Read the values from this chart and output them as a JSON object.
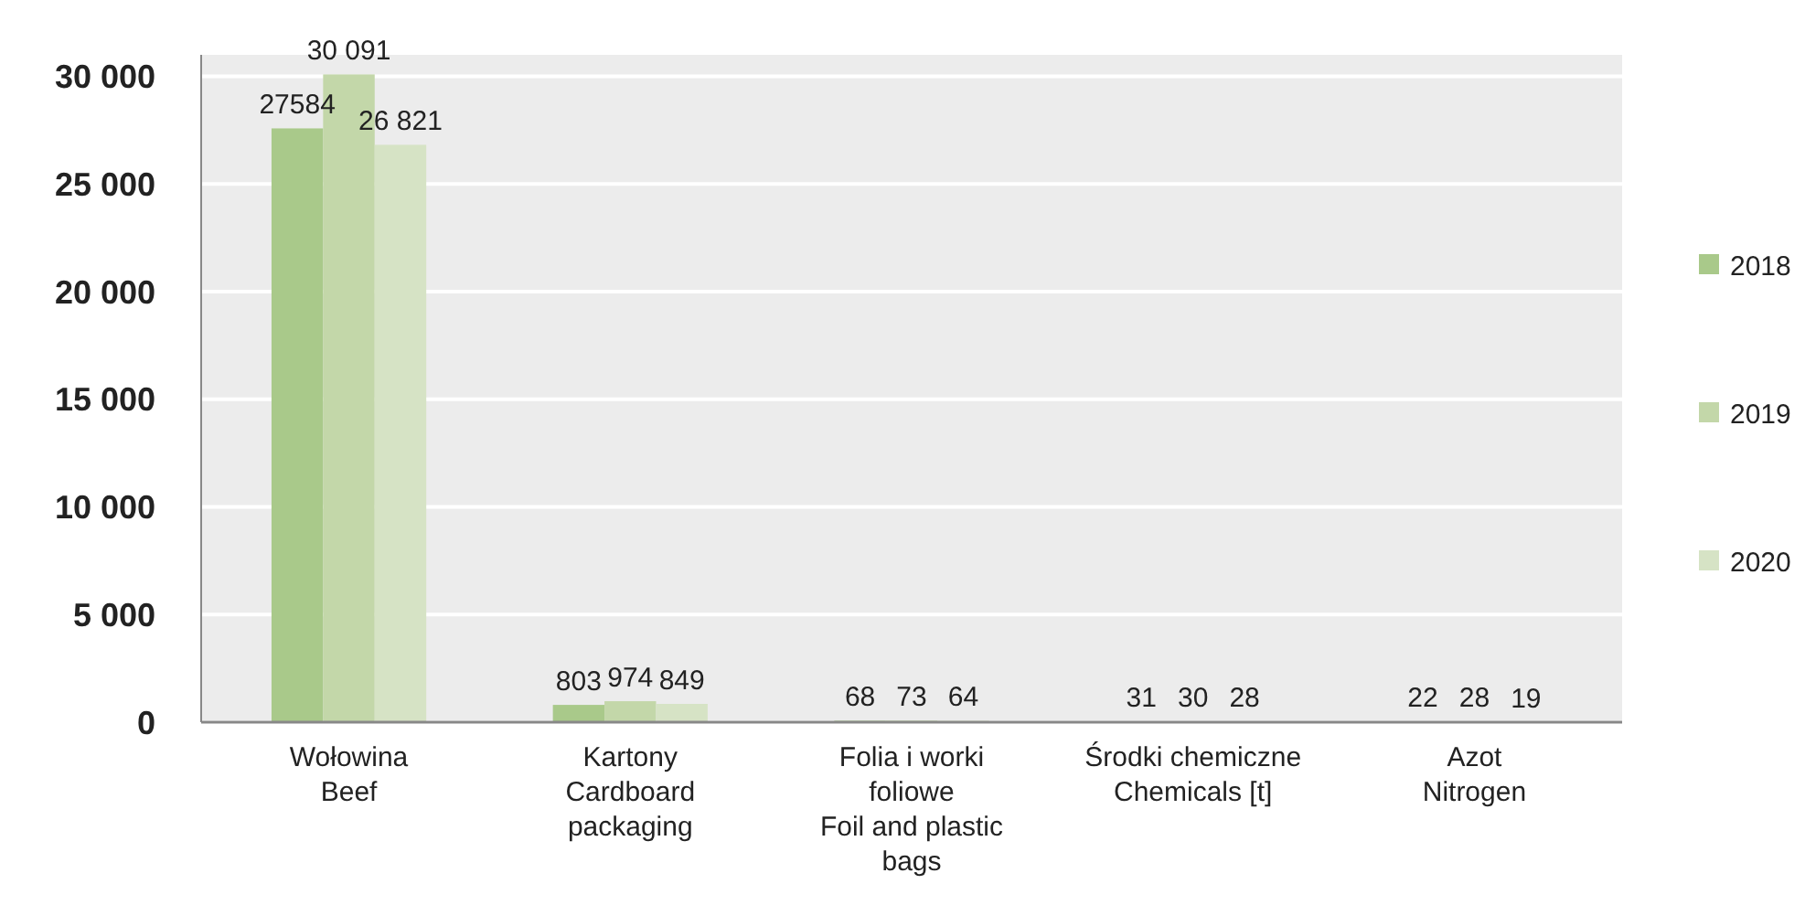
{
  "chart_data": {
    "type": "bar",
    "categories": [
      "Wołowina\nBeef",
      "Kartony\nCardboard\npackaging",
      "Folia i worki\nfoliowe\nFoil and plastic\nbags",
      "Środki chemiczne\nChemicals [t]",
      "Azot\nNitrogen"
    ],
    "series": [
      {
        "name": "2018",
        "color": "#a9c98a",
        "values": [
          27584,
          803,
          68,
          31,
          22
        ],
        "value_labels": [
          "27584",
          "803",
          "68",
          "31",
          "22"
        ]
      },
      {
        "name": "2019",
        "color": "#c3d7a9",
        "values": [
          30091,
          974,
          73,
          30,
          28
        ],
        "value_labels": [
          "30 091",
          "974",
          "73",
          "30",
          "28"
        ]
      },
      {
        "name": "2020",
        "color": "#d6e3c5",
        "values": [
          26821,
          849,
          64,
          28,
          19
        ],
        "value_labels": [
          "26 821",
          "849",
          "64",
          "28",
          "19"
        ]
      }
    ],
    "ylim": [
      0,
      31000
    ],
    "yticks": [
      {
        "value": 0,
        "label": "0"
      },
      {
        "value": 5000,
        "label": "5 000"
      },
      {
        "value": 10000,
        "label": "10 000"
      },
      {
        "value": 15000,
        "label": "15 000"
      },
      {
        "value": 20000,
        "label": "20 000"
      },
      {
        "value": 25000,
        "label": "25 000"
      },
      {
        "value": 30000,
        "label": "30 000"
      }
    ],
    "grid": "y",
    "legend": "right"
  }
}
